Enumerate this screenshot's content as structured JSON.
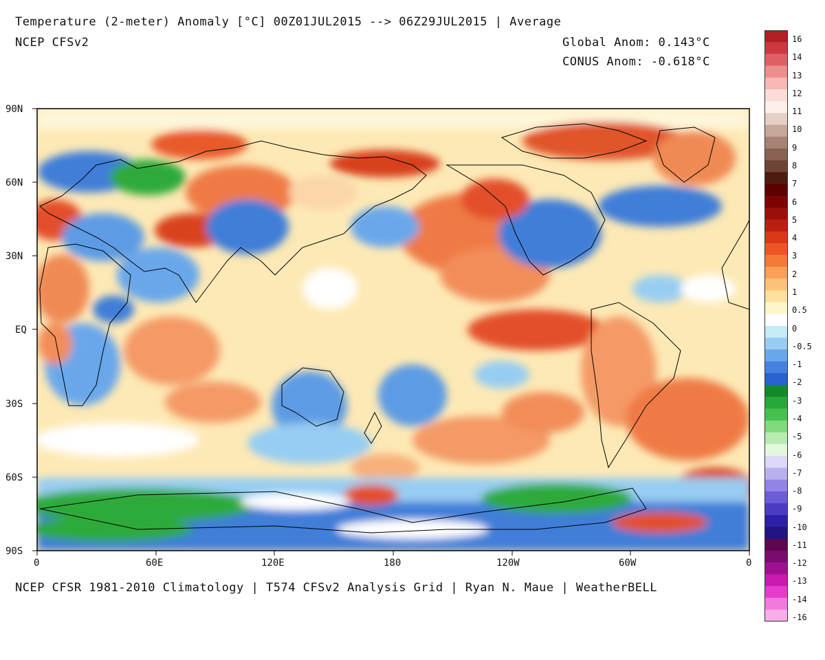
{
  "header": {
    "title": "Temperature (2-meter) Anomaly  [°C] 00Z01JUL2015 --> 06Z29JUL2015 | Average",
    "model": "NCEP CFSv2",
    "global_anom": "Global Anom: 0.143°C",
    "conus_anom": "CONUS Anom: -0.618°C"
  },
  "footer": "NCEP CFSR 1981-2010 Climatology | T574 CFSv2 Analysis Grid | Ryan N. Maue | WeatherBELL",
  "map": {
    "lat_labels": [
      "90N",
      "60N",
      "30N",
      "EQ",
      "30S",
      "60S",
      "90S"
    ],
    "lon_labels": [
      "0",
      "60E",
      "120E",
      "180",
      "120W",
      "60W",
      "0"
    ]
  },
  "colorbar": {
    "labels": [
      "16",
      "14",
      "13",
      "12",
      "11",
      "10",
      "9",
      "8",
      "7",
      "6",
      "5",
      "4",
      "3",
      "2",
      "1",
      "0.5",
      "0",
      "-0.5",
      "-1",
      "-2",
      "-3",
      "-4",
      "-5",
      "-6",
      "-7",
      "-8",
      "-9",
      "-10",
      "-11",
      "-12",
      "-13",
      "-14",
      "-16"
    ],
    "colors": [
      "#b11e23",
      "#cc3a3f",
      "#dd6164",
      "#ec8e8e",
      "#f6b9b5",
      "#fbdcd6",
      "#fdf0ea",
      "#e6cfc6",
      "#c7a79a",
      "#a88274",
      "#8a6153",
      "#6e4436",
      "#4b1d12",
      "#5c0000",
      "#7d0404",
      "#9a1008",
      "#b81f10",
      "#d73819",
      "#ed5527",
      "#f57a3a",
      "#fb9f58",
      "#fdc279",
      "#ffe09e",
      "#fff5cc",
      "#ffffff",
      "#c6eaf7",
      "#97cdf2",
      "#6aa7ea",
      "#4582e0",
      "#2a62cf",
      "#128a2c",
      "#26a83a",
      "#46c150",
      "#80d97d",
      "#b6ecb0",
      "#e2f7dc",
      "#dcd8f8",
      "#b9b0f0",
      "#9284e6",
      "#6c5cd8",
      "#4c3cc4",
      "#2e20a6",
      "#221482",
      "#5c0850",
      "#7a0c6e",
      "#9e1090",
      "#c81ab0",
      "#e63ccd",
      "#f27ade",
      "#f8aee9"
    ]
  },
  "colors": {
    "ocean_base": "#fde9b5",
    "warm": "#f58a4e",
    "hot": "#d83a1a",
    "cool": "#5a9be6",
    "cold": "#2f6fd4",
    "green": "#2fb43c",
    "white": "#ffffff"
  }
}
